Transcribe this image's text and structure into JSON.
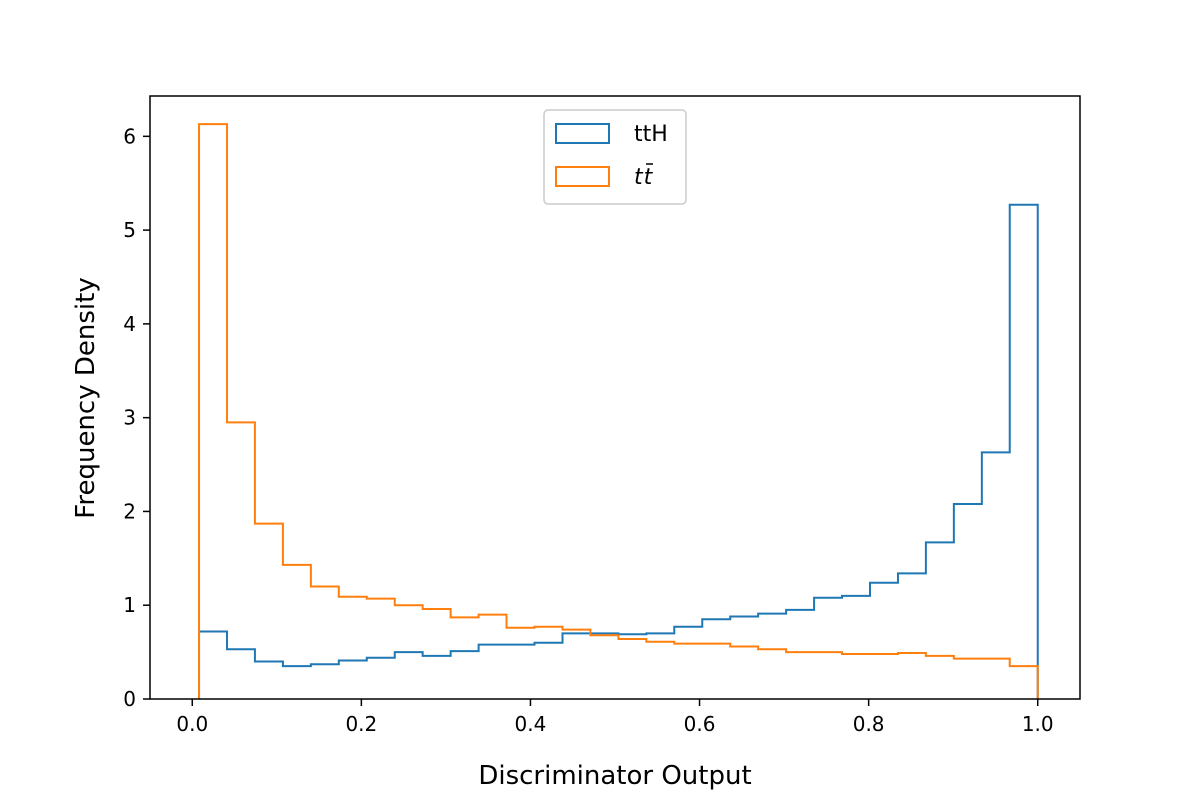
{
  "chart_data": {
    "type": "histogram-step",
    "xlabel": "Discriminator Output",
    "ylabel": "Frequency Density",
    "xlim": [
      -0.05,
      1.05
    ],
    "ylim": [
      0,
      6.43
    ],
    "xticks": [
      "0.0",
      "0.2",
      "0.4",
      "0.6",
      "0.8",
      "1.0"
    ],
    "yticks": [
      "0",
      "1",
      "2",
      "3",
      "4",
      "5",
      "6"
    ],
    "legend_position": "upper center",
    "grid": false,
    "bin_edges": [
      0.008,
      0.0411,
      0.0741,
      0.1072,
      0.1403,
      0.1733,
      0.2064,
      0.2395,
      0.2725,
      0.3056,
      0.3387,
      0.3717,
      0.4048,
      0.4379,
      0.4709,
      0.504,
      0.5371,
      0.5701,
      0.6032,
      0.6363,
      0.6693,
      0.7024,
      0.7355,
      0.7685,
      0.8016,
      0.8347,
      0.8677,
      0.9008,
      0.9339,
      0.9669,
      1.0
    ],
    "series": [
      {
        "name": "ttH",
        "color": "#1f77b4",
        "values": [
          0.72,
          0.53,
          0.4,
          0.35,
          0.37,
          0.41,
          0.44,
          0.5,
          0.46,
          0.51,
          0.58,
          0.58,
          0.6,
          0.7,
          0.7,
          0.69,
          0.7,
          0.77,
          0.85,
          0.88,
          0.91,
          0.95,
          1.08,
          1.1,
          1.24,
          1.34,
          1.67,
          2.08,
          2.63,
          5.27
        ]
      },
      {
        "name": "t t̄",
        "color": "#ff7f0e",
        "values": [
          6.13,
          2.95,
          1.87,
          1.43,
          1.2,
          1.09,
          1.07,
          1.0,
          0.96,
          0.87,
          0.9,
          0.76,
          0.77,
          0.74,
          0.68,
          0.64,
          0.61,
          0.59,
          0.59,
          0.56,
          0.53,
          0.5,
          0.5,
          0.48,
          0.48,
          0.49,
          0.46,
          0.43,
          0.43,
          0.35
        ]
      }
    ]
  }
}
